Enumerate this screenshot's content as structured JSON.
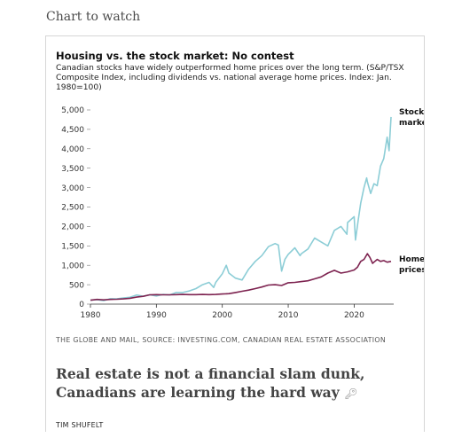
{
  "page": {
    "section_title": "Chart to watch",
    "source": "THE GLOBE AND MAIL, SOURCE: INVESTING.COM, CANADIAN REAL ESTATE ASSOCIATION",
    "headline": "Real estate is not a financial slam dunk, Canadians are learning the hard way",
    "headline_icon": "key-icon",
    "byline": "TIM SHUFELT"
  },
  "chart_data": {
    "type": "line",
    "title": "Housing vs. the stock market: No contest",
    "subtitle": "Canadian stocks have widely outperformed home prices over the long term. (S&P/TSX Composite Index, including dividends vs. national average home prices. Index: Jan. 1980=100)",
    "xlabel": "",
    "ylabel": "",
    "xlim": [
      1980,
      2026
    ],
    "ylim": [
      0,
      5000
    ],
    "x_ticks": [
      1980,
      1990,
      2000,
      2010,
      2020
    ],
    "y_ticks": [
      "0",
      "500",
      "1,000",
      "1,500",
      "2,000",
      "2,500",
      "3,000",
      "3,500",
      "4,000",
      "4,500",
      "5,000"
    ],
    "grid": false,
    "series": [
      {
        "name": "Stock market",
        "label_lines": [
          "Stock",
          "market"
        ],
        "color": "#8ccdd6",
        "points": [
          [
            1980,
            100
          ],
          [
            1981,
            115
          ],
          [
            1982,
            90
          ],
          [
            1983,
            140
          ],
          [
            1984,
            135
          ],
          [
            1985,
            160
          ],
          [
            1986,
            175
          ],
          [
            1987,
            235
          ],
          [
            1988,
            200
          ],
          [
            1989,
            240
          ],
          [
            1990,
            210
          ],
          [
            1991,
            250
          ],
          [
            1992,
            235
          ],
          [
            1993,
            300
          ],
          [
            1994,
            300
          ],
          [
            1995,
            340
          ],
          [
            1996,
            400
          ],
          [
            1997,
            500
          ],
          [
            1998,
            560
          ],
          [
            1998.7,
            430
          ],
          [
            1999,
            560
          ],
          [
            2000,
            780
          ],
          [
            2000.6,
            1000
          ],
          [
            2001,
            800
          ],
          [
            2002,
            670
          ],
          [
            2003,
            620
          ],
          [
            2004,
            900
          ],
          [
            2005,
            1100
          ],
          [
            2006,
            1250
          ],
          [
            2007,
            1480
          ],
          [
            2008,
            1560
          ],
          [
            2008.5,
            1520
          ],
          [
            2009,
            850
          ],
          [
            2009.5,
            1150
          ],
          [
            2010,
            1280
          ],
          [
            2011,
            1450
          ],
          [
            2011.8,
            1250
          ],
          [
            2012,
            1300
          ],
          [
            2013,
            1420
          ],
          [
            2014,
            1700
          ],
          [
            2015,
            1600
          ],
          [
            2016,
            1500
          ],
          [
            2017,
            1900
          ],
          [
            2018,
            2000
          ],
          [
            2018.9,
            1800
          ],
          [
            2019,
            2100
          ],
          [
            2020,
            2250
          ],
          [
            2020.2,
            1650
          ],
          [
            2020.6,
            2150
          ],
          [
            2021,
            2600
          ],
          [
            2021.5,
            3000
          ],
          [
            2021.9,
            3250
          ],
          [
            2022,
            3150
          ],
          [
            2022.5,
            2850
          ],
          [
            2023,
            3100
          ],
          [
            2023.5,
            3050
          ],
          [
            2024,
            3550
          ],
          [
            2024.5,
            3750
          ],
          [
            2025,
            4300
          ],
          [
            2025.3,
            3950
          ],
          [
            2025.6,
            4820
          ]
        ]
      },
      {
        "name": "Home prices",
        "label_lines": [
          "Home",
          "prices"
        ],
        "color": "#7d2350",
        "points": [
          [
            1980,
            100
          ],
          [
            1981,
            120
          ],
          [
            1982,
            110
          ],
          [
            1983,
            120
          ],
          [
            1984,
            125
          ],
          [
            1985,
            135
          ],
          [
            1986,
            150
          ],
          [
            1987,
            180
          ],
          [
            1988,
            200
          ],
          [
            1989,
            240
          ],
          [
            1990,
            245
          ],
          [
            1991,
            240
          ],
          [
            1992,
            240
          ],
          [
            1993,
            245
          ],
          [
            1994,
            250
          ],
          [
            1995,
            245
          ],
          [
            1996,
            245
          ],
          [
            1997,
            250
          ],
          [
            1998,
            245
          ],
          [
            1999,
            250
          ],
          [
            2000,
            260
          ],
          [
            2001,
            270
          ],
          [
            2002,
            300
          ],
          [
            2003,
            330
          ],
          [
            2004,
            360
          ],
          [
            2005,
            400
          ],
          [
            2006,
            440
          ],
          [
            2007,
            490
          ],
          [
            2008,
            500
          ],
          [
            2009,
            480
          ],
          [
            2010,
            550
          ],
          [
            2011,
            560
          ],
          [
            2012,
            580
          ],
          [
            2013,
            600
          ],
          [
            2014,
            650
          ],
          [
            2015,
            700
          ],
          [
            2016,
            800
          ],
          [
            2017,
            870
          ],
          [
            2018,
            800
          ],
          [
            2019,
            830
          ],
          [
            2020,
            880
          ],
          [
            2020.5,
            950
          ],
          [
            2021,
            1100
          ],
          [
            2021.5,
            1150
          ],
          [
            2022,
            1300
          ],
          [
            2022.4,
            1200
          ],
          [
            2022.8,
            1050
          ],
          [
            2023,
            1080
          ],
          [
            2023.5,
            1150
          ],
          [
            2024,
            1100
          ],
          [
            2024.5,
            1120
          ],
          [
            2025,
            1080
          ],
          [
            2025.6,
            1100
          ]
        ]
      }
    ]
  }
}
